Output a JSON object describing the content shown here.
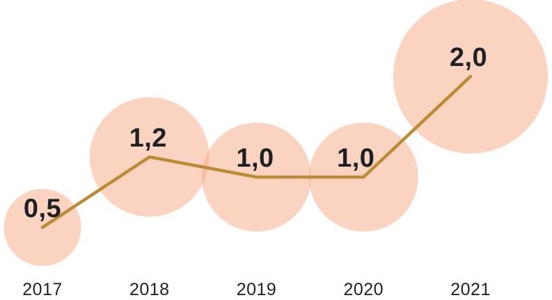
{
  "chart_data": {
    "type": "bubble-line",
    "title": "",
    "categories": [
      "2017",
      "2018",
      "2019",
      "2020",
      "2021"
    ],
    "series": [
      {
        "name": "value",
        "values": [
          0.5,
          1.2,
          1.0,
          1.0,
          2.0
        ]
      }
    ],
    "point_labels": [
      "0,5",
      "1,2",
      "1,0",
      "1,0",
      "2,0"
    ],
    "decimal_style": "comma",
    "xlabel": "",
    "ylabel": "",
    "ylim": [
      0,
      2.2
    ],
    "grid": false,
    "legend": false,
    "layout_hints": {
      "bubble_area_proportional_to_value": true,
      "value_labels_position": "above-point",
      "x_axis_labels_position": "bottom",
      "line_over_bubbles": true
    },
    "colors": {
      "bubble_fill_rgba": "rgba(245,169,132,0.5)",
      "line": "#BC8A32",
      "value_label_text": "#1F2023",
      "axis_text": "#1F2023",
      "background": "#FFFFFF"
    }
  }
}
